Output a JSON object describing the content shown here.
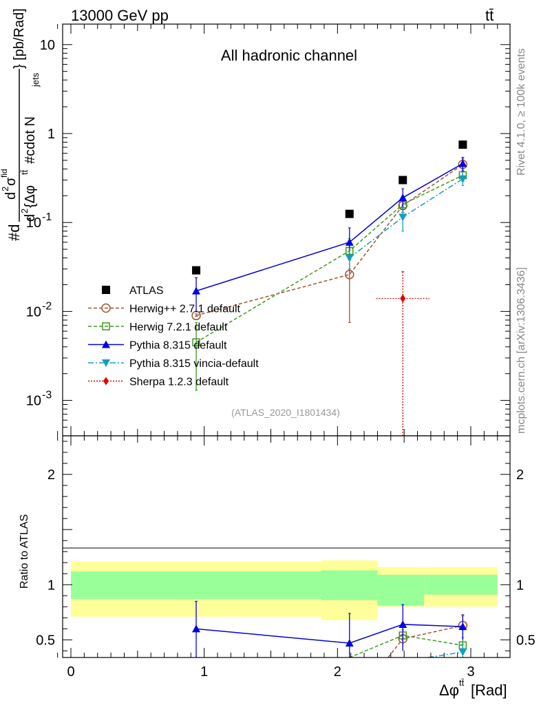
{
  "header": {
    "energy_label": "13000 GeV pp",
    "process_label": "tt̄"
  },
  "side_labels": {
    "rivet": "Rivet 4.1.0, ≥ 100k events",
    "mcplots": "mcplots.cern.ch [arXiv:1306.3436]"
  },
  "colors": {
    "atlas": "#000000",
    "herwigpp": "#a0522d",
    "herwig7": "#3a9a1e",
    "pythia": "#0000e0",
    "vincia": "#119fc0",
    "sherpa": "#e00000",
    "band_inner": "#99ff99",
    "band_outer": "#ffff99"
  },
  "chart_data": [
    {
      "type": "scatter",
      "title": "All hadronic channel",
      "analysis_tag": "(ATLAS_2020_I1801434)",
      "xlabel": "Δφ^{tt̄} [Rad]",
      "ylabel": "#d d^2σ^{fid} / d^2{Δφ^{tt̄} #cdot N_{jets}} [pb/Rad]",
      "ylabel_parts": {
        "num_prefix": "#d",
        "num": "d",
        "num_sup": "2",
        "num_sigma": "σ",
        "num_fid": "fid",
        "den_d2": "d",
        "den_sup2": "2",
        "den_text": " {Δφ",
        "den_sup_tt": "tt̄",
        "den_text2": " #cdot N",
        "den_sub": "jets",
        "brace_unit": "} [pb/Rad]"
      },
      "yscale": "log",
      "xlim": [
        -0.1,
        3.25
      ],
      "ylim": [
        0.0004,
        17
      ],
      "y_ticks": [
        {
          "value": 10,
          "label": "10"
        },
        {
          "value": 1,
          "label": "1"
        },
        {
          "value": 0.1,
          "label": "10",
          "exp": "-1"
        },
        {
          "value": 0.01,
          "label": "10",
          "exp": "-2"
        },
        {
          "value": 0.001,
          "label": "10",
          "exp": "-3"
        }
      ],
      "legend_position": "center-left",
      "series": [
        {
          "name": "ATLAS",
          "key": "atlas",
          "marker": "square-filled",
          "line": "none",
          "x": [
            0.94,
            2.09,
            2.49,
            2.94
          ],
          "y": [
            0.029,
            0.125,
            0.3,
            0.75
          ]
        },
        {
          "name": "Herwig++ 2.7.1 default",
          "key": "herwigpp",
          "marker": "circle-open",
          "line": "dashed",
          "x": [
            0.94,
            2.09,
            2.49,
            2.94
          ],
          "y": [
            0.009,
            0.026,
            0.155,
            0.45
          ],
          "yerr_low": [
            0.0088,
            0.0075,
            0.13,
            0.38
          ],
          "yerr_high": [
            0.0094,
            0.04,
            0.175,
            0.52
          ]
        },
        {
          "name": "Herwig 7.2.1 default",
          "key": "herwig7",
          "marker": "square-open",
          "line": "dashed",
          "x": [
            0.94,
            2.09,
            2.49,
            2.94
          ],
          "y": [
            0.0045,
            0.048,
            0.16,
            0.34
          ],
          "yerr_low": [
            0.0013,
            0.03,
            0.13,
            0.29
          ],
          "yerr_high": [
            0.0075,
            0.066,
            0.19,
            0.4
          ]
        },
        {
          "name": "Pythia 8.315 default",
          "key": "pythia",
          "marker": "triangle-up-filled",
          "line": "solid",
          "x": [
            0.94,
            2.09,
            2.49,
            2.94
          ],
          "y": [
            0.017,
            0.06,
            0.19,
            0.46
          ],
          "yerr_low": [
            0.01,
            0.038,
            0.14,
            0.38
          ],
          "yerr_high": [
            0.024,
            0.087,
            0.24,
            0.54
          ]
        },
        {
          "name": "Pythia 8.315 vincia-default",
          "key": "vincia",
          "marker": "triangle-down-filled",
          "line": "dashdot",
          "x": [
            2.09,
            2.49,
            2.94
          ],
          "y": [
            0.04,
            0.115,
            0.31
          ],
          "yerr_low": [
            0.03,
            0.08,
            0.26
          ],
          "yerr_high": [
            0.05,
            0.15,
            0.37
          ]
        },
        {
          "name": "Sherpa 1.2.3 default",
          "key": "sherpa",
          "marker": "diamond-filled",
          "line": "dotted",
          "x": [
            2.49
          ],
          "y": [
            0.014
          ],
          "xerr": [
            0.2
          ],
          "yerr_low": [
            0.0003
          ],
          "yerr_high": [
            0.028
          ]
        }
      ]
    },
    {
      "type": "scatter",
      "ylabel": "Ratio to ATLAS",
      "xlim": [
        -0.1,
        3.25
      ],
      "ylim": [
        0.34,
        2.35
      ],
      "y_ticks": [
        {
          "value": 0.5,
          "label": "0.5"
        },
        {
          "value": 1,
          "label": "1"
        },
        {
          "value": 2,
          "label": "2"
        }
      ],
      "x_ticks": [
        {
          "value": 0,
          "label": "0"
        },
        {
          "value": 1,
          "label": "1"
        },
        {
          "value": 2,
          "label": "2"
        },
        {
          "value": 3,
          "label": "3"
        }
      ],
      "bands": [
        {
          "x0": 0.0,
          "x1": 1.88,
          "inner": [
            0.87,
            1.12
          ],
          "outer": [
            0.71,
            1.21
          ]
        },
        {
          "x0": 1.88,
          "x1": 2.3,
          "inner": [
            0.86,
            1.13
          ],
          "outer": [
            0.68,
            1.22
          ]
        },
        {
          "x0": 2.3,
          "x1": 2.65,
          "inner": [
            0.81,
            1.09
          ],
          "outer": [
            0.8,
            1.16
          ]
        },
        {
          "x0": 2.65,
          "x1": 3.2,
          "inner": [
            0.91,
            1.09
          ],
          "outer": [
            0.8,
            1.16
          ]
        }
      ],
      "series": [
        {
          "key": "herwigpp",
          "x": [
            2.38,
            2.49,
            2.94
          ],
          "y": [
            0.34,
            0.51,
            0.63
          ],
          "yerr_low": [
            null,
            0.43,
            0.52
          ],
          "yerr_high": [
            null,
            0.59,
            0.73
          ]
        },
        {
          "key": "herwig7",
          "x": [
            2.09,
            2.49,
            2.94
          ],
          "y": [
            0.34,
            0.54,
            0.45
          ],
          "yerr_low": [
            null,
            0.44,
            0.37
          ],
          "yerr_high": [
            null,
            0.63,
            0.52
          ]
        },
        {
          "key": "pythia",
          "x": [
            0.94,
            2.09,
            2.49,
            2.94
          ],
          "y": [
            0.6,
            0.47,
            0.64,
            0.62
          ],
          "yerr_low": [
            0.34,
            0.34,
            0.4,
            0.5
          ],
          "yerr_high": [
            0.85,
            0.74,
            0.82,
            0.72
          ]
        },
        {
          "key": "vincia",
          "x": [
            2.68,
            2.94
          ],
          "y": [
            0.34,
            0.39
          ],
          "yerr_low": [
            null,
            0.34
          ],
          "yerr_high": [
            null,
            0.46
          ]
        }
      ]
    }
  ]
}
